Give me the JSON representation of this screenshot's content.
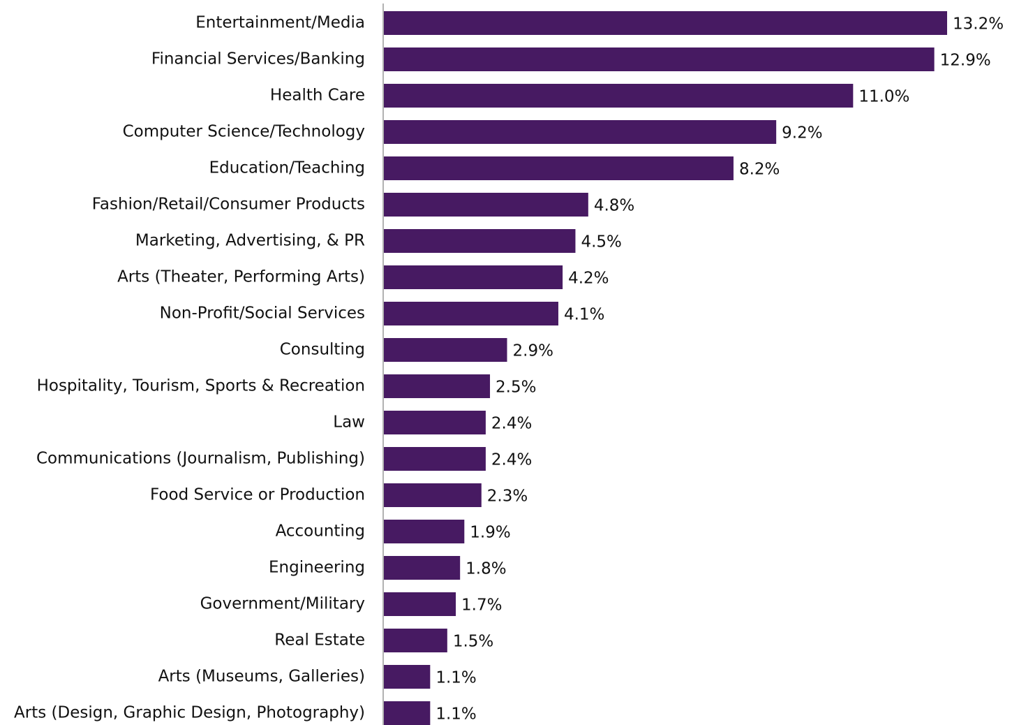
{
  "chart_data": {
    "type": "barh",
    "color": "#471a62",
    "categories": [
      "Entertainment/Media",
      "Financial Services/Banking",
      "Health Care",
      "Computer Science/Technology",
      "Education/Teaching",
      "Fashion/Retail/Consumer Products",
      "Marketing, Advertising, & PR",
      "Arts (Theater, Performing Arts)",
      "Non-Profit/Social Services",
      "Consulting",
      "Hospitality, Tourism, Sports & Recreation",
      "Law",
      "Communications (Journalism, Publishing)",
      "Food Service or Production",
      "Accounting",
      "Engineering",
      "Government/Military",
      "Real Estate",
      "Arts (Museums, Galleries)",
      "Arts (Design, Graphic Design, Photography)"
    ],
    "values": [
      13.2,
      12.9,
      11.0,
      9.2,
      8.2,
      4.8,
      4.5,
      4.2,
      4.1,
      2.9,
      2.5,
      2.4,
      2.4,
      2.3,
      1.9,
      1.8,
      1.7,
      1.5,
      1.1,
      1.1
    ],
    "value_labels": [
      "13.2%",
      "12.9%",
      "11.0%",
      "9.2%",
      "8.2%",
      "4.8%",
      "4.5%",
      "4.2%",
      "4.1%",
      "2.9%",
      "2.5%",
      "2.4%",
      "2.4%",
      "2.3%",
      "1.9%",
      "1.8%",
      "1.7%",
      "1.5%",
      "1.1%",
      "1.1%"
    ]
  }
}
